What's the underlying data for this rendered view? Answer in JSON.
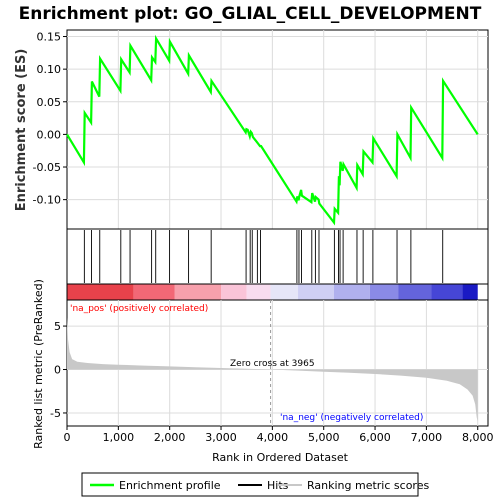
{
  "title": "Enrichment plot: GO_GLIAL_CELL_DEVELOPMENT",
  "colors": {
    "es_line": "#00ff00",
    "hit": "#000000",
    "metric_fill": "#c8c8c8",
    "pos_text": "#ff0000",
    "neg_text": "#0000ff",
    "grid": "#dcdcdc",
    "zero_line": "#999999"
  },
  "chart_data": [
    {
      "type": "line",
      "name": "enrichment-score-panel",
      "ylabel": "Enrichment score (ES)",
      "ylim": [
        -0.145,
        0.16
      ],
      "yticks": [
        0.15,
        0.1,
        0.05,
        0.0,
        -0.05,
        -0.1
      ],
      "ytick_labels": [
        "0.15",
        "0.10",
        "0.05",
        "0.00",
        "-0.05",
        "-0.10"
      ],
      "xlim": [
        0,
        8200
      ],
      "grid": true,
      "series": [
        {
          "name": "Enrichment profile",
          "x": [
            0,
            330,
            345,
            470,
            485,
            630,
            645,
            1040,
            1055,
            1220,
            1235,
            1640,
            1655,
            1720,
            1735,
            1990,
            2005,
            2360,
            2375,
            2800,
            2815,
            3480,
            3495,
            3520,
            3560,
            3580,
            3600,
            3620,
            3700,
            3720,
            3760,
            3780,
            4470,
            4485,
            4510,
            4525,
            4560,
            4575,
            4760,
            4775,
            4830,
            4845,
            4900,
            4915,
            5200,
            5215,
            5280,
            5295,
            5310,
            5325,
            5370,
            5385,
            5640,
            5655,
            5760,
            5775,
            5950,
            5965,
            6420,
            6435,
            6690,
            6705,
            7310,
            7325,
            8000
          ],
          "y": [
            0.0,
            -0.043,
            0.033,
            0.018,
            0.081,
            0.058,
            0.116,
            0.067,
            0.115,
            0.095,
            0.136,
            0.083,
            0.118,
            0.111,
            0.147,
            0.113,
            0.142,
            0.093,
            0.121,
            0.065,
            0.082,
            0.003,
            0.008,
            0.007,
            -0.003,
            0.004,
            0.002,
            -0.004,
            -0.012,
            -0.014,
            -0.018,
            -0.018,
            -0.103,
            -0.095,
            -0.101,
            -0.095,
            -0.085,
            -0.094,
            -0.104,
            -0.09,
            -0.103,
            -0.096,
            -0.1,
            -0.106,
            -0.135,
            -0.114,
            -0.12,
            -0.064,
            -0.078,
            -0.042,
            -0.056,
            -0.046,
            -0.082,
            -0.047,
            -0.061,
            -0.026,
            -0.043,
            -0.006,
            -0.064,
            0.0,
            -0.036,
            0.041,
            -0.036,
            0.082,
            0.0
          ]
        }
      ]
    },
    {
      "type": "scatter",
      "name": "hits-panel",
      "series": [
        {
          "name": "Hits",
          "x": [
            338,
            478,
            638,
            1048,
            1228,
            1648,
            1728,
            1998,
            2368,
            2808,
            3488,
            3568,
            3608,
            3708,
            3768,
            4478,
            4518,
            4568,
            4768,
            4838,
            4908,
            5208,
            5288,
            5318,
            5378,
            5648,
            5768,
            5958,
            6428,
            6698,
            7318
          ]
        }
      ]
    },
    {
      "type": "heatmap",
      "name": "rank-color-bar",
      "segments": [
        {
          "from": 0,
          "to": 1300,
          "color": "#e8424b"
        },
        {
          "from": 1300,
          "to": 2100,
          "color": "#f26876"
        },
        {
          "from": 2100,
          "to": 3000,
          "color": "#f7a0ac"
        },
        {
          "from": 3000,
          "to": 3500,
          "color": "#fac4d8"
        },
        {
          "from": 3500,
          "to": 3965,
          "color": "#f8dcef"
        },
        {
          "from": 3965,
          "to": 4500,
          "color": "#e6e6f8"
        },
        {
          "from": 4500,
          "to": 5200,
          "color": "#cfcff4"
        },
        {
          "from": 5200,
          "to": 5900,
          "color": "#b0b0ee"
        },
        {
          "from": 5900,
          "to": 6450,
          "color": "#8a8ae6"
        },
        {
          "from": 6450,
          "to": 7100,
          "color": "#6464dc"
        },
        {
          "from": 7100,
          "to": 7700,
          "color": "#4646d6"
        },
        {
          "from": 7700,
          "to": 8000,
          "color": "#1a1ac4"
        }
      ]
    },
    {
      "type": "area",
      "name": "ranked-metric-panel",
      "xlabel": "Rank in Ordered Dataset",
      "ylabel": "Ranked list metric (PreRanked)",
      "ylim": [
        -6.5,
        8
      ],
      "yticks": [
        5,
        0,
        -5
      ],
      "ytick_labels": [
        "5",
        "0",
        "-5"
      ],
      "xticks": [
        0,
        1000,
        2000,
        3000,
        4000,
        5000,
        6000,
        7000,
        8000
      ],
      "xtick_labels": [
        "0",
        "1,000",
        "2,000",
        "3,000",
        "4,000",
        "5,000",
        "6,000",
        "7,000",
        "8,000"
      ],
      "series": [
        {
          "name": "Ranking metric scores",
          "x": [
            0,
            20,
            50,
            100,
            200,
            400,
            700,
            1000,
            1500,
            2000,
            2500,
            3000,
            3500,
            3965,
            4500,
            5000,
            5500,
            6000,
            6500,
            7000,
            7400,
            7650,
            7800,
            7900,
            7950,
            7980,
            8000
          ],
          "y": [
            6.0,
            3.5,
            2.0,
            1.2,
            0.9,
            0.75,
            0.62,
            0.55,
            0.45,
            0.36,
            0.27,
            0.18,
            0.09,
            0.0,
            -0.12,
            -0.25,
            -0.38,
            -0.52,
            -0.7,
            -0.95,
            -1.3,
            -1.7,
            -2.3,
            -3.0,
            -4.0,
            -5.5,
            -6.0
          ]
        }
      ],
      "annotations": {
        "zero_cross": "Zero cross at 3965",
        "zero_cross_x": 3965,
        "pos_label": "'na_pos' (positively correlated)",
        "neg_label": "'na_neg' (negatively correlated)"
      }
    }
  ],
  "legend": {
    "items": [
      {
        "label": "Enrichment profile",
        "color": "#00ff00"
      },
      {
        "label": "Hits",
        "color": "#000000"
      },
      {
        "label": "Ranking metric scores",
        "color": "#c8c8c8"
      }
    ]
  }
}
